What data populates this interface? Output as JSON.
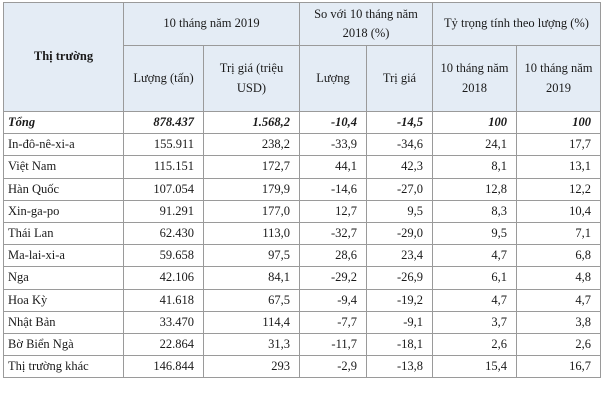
{
  "table": {
    "header": {
      "market": "Thị trường",
      "group_10m_2019": "10 tháng năm 2019",
      "group_vs_2018": "So với 10 tháng năm 2018 (%)",
      "group_share": "Tỷ trọng tính theo lượng (%)",
      "col_volume": "Lượng (tấn)",
      "col_value": "Trị giá (triệu USD)",
      "col_vs_volume": "Lượng",
      "col_vs_value": "Trị giá",
      "col_share_2018": "10 tháng năm 2018",
      "col_share_2019": "10 tháng năm 2019"
    },
    "rows": [
      {
        "market": "Tổng",
        "volume": "878.437",
        "value": "1.568,2",
        "vs_volume": "-10,4",
        "vs_value": "-14,5",
        "share_2018": "100",
        "share_2019": "100"
      },
      {
        "market": "In-đô-nê-xi-a",
        "volume": "155.911",
        "value": "238,2",
        "vs_volume": "-33,9",
        "vs_value": "-34,6",
        "share_2018": "24,1",
        "share_2019": "17,7"
      },
      {
        "market": "Việt Nam",
        "volume": "115.151",
        "value": "172,7",
        "vs_volume": "44,1",
        "vs_value": "42,3",
        "share_2018": "8,1",
        "share_2019": "13,1"
      },
      {
        "market": "Hàn Quốc",
        "volume": "107.054",
        "value": "179,9",
        "vs_volume": "-14,6",
        "vs_value": "-27,0",
        "share_2018": "12,8",
        "share_2019": "12,2"
      },
      {
        "market": "Xin-ga-po",
        "volume": "91.291",
        "value": "177,0",
        "vs_volume": "12,7",
        "vs_value": "9,5",
        "share_2018": "8,3",
        "share_2019": "10,4"
      },
      {
        "market": "Thái Lan",
        "volume": "62.430",
        "value": "113,0",
        "vs_volume": "-32,7",
        "vs_value": "-29,0",
        "share_2018": "9,5",
        "share_2019": "7,1"
      },
      {
        "market": "Ma-lai-xi-a",
        "volume": "59.658",
        "value": "97,5",
        "vs_volume": "28,6",
        "vs_value": "23,4",
        "share_2018": "4,7",
        "share_2019": "6,8"
      },
      {
        "market": "Nga",
        "volume": "42.106",
        "value": "84,1",
        "vs_volume": "-29,2",
        "vs_value": "-26,9",
        "share_2018": "6,1",
        "share_2019": "4,8"
      },
      {
        "market": "Hoa Kỳ",
        "volume": "41.618",
        "value": "67,5",
        "vs_volume": "-9,4",
        "vs_value": "-19,2",
        "share_2018": "4,7",
        "share_2019": "4,7"
      },
      {
        "market": "Nhật Bản",
        "volume": "33.470",
        "value": "114,4",
        "vs_volume": "-7,7",
        "vs_value": "-9,1",
        "share_2018": "3,7",
        "share_2019": "3,8"
      },
      {
        "market": "Bờ Biển Ngà",
        "volume": "22.864",
        "value": "31,3",
        "vs_volume": "-11,7",
        "vs_value": "-18,1",
        "share_2018": "2,6",
        "share_2019": "2,6"
      },
      {
        "market": "Thị trường khác",
        "volume": "146.844",
        "value": "293",
        "vs_volume": "-2,9",
        "vs_value": "-13,8",
        "share_2018": "15,4",
        "share_2019": "16,7"
      }
    ]
  }
}
